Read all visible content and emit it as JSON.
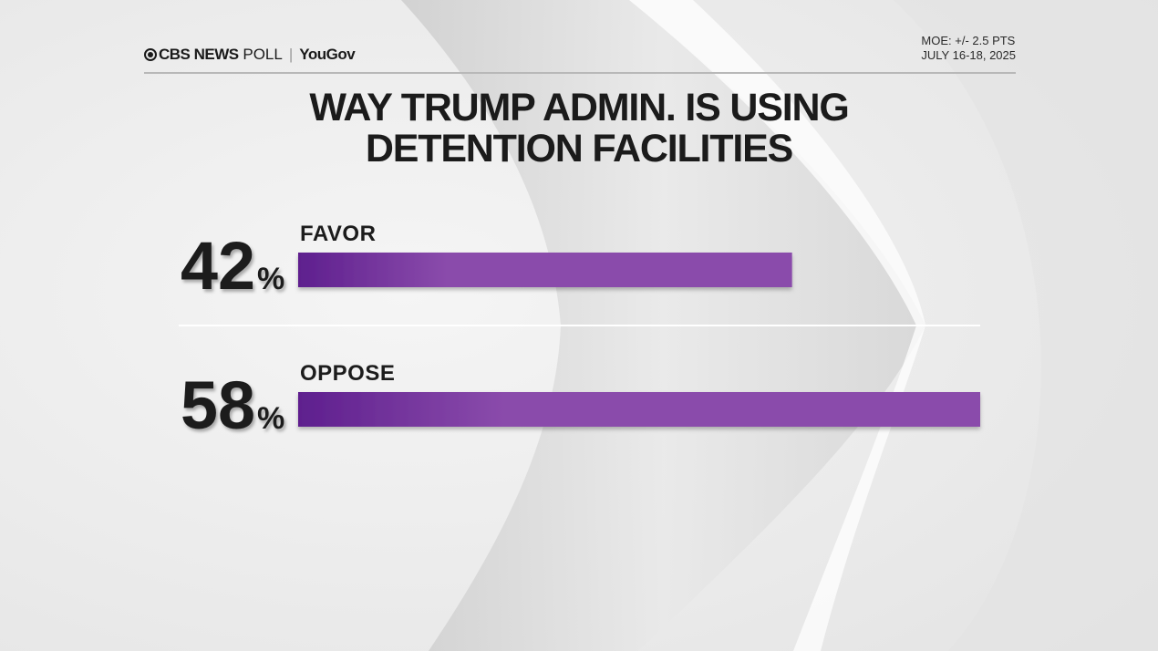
{
  "header": {
    "brand_cbs": "CBS NEWS",
    "brand_poll": "POLL",
    "brand_partner": "YouGov",
    "moe": "MOE: +/- 2.5 PTS",
    "dates": "JULY 16-18, 2025"
  },
  "chart_data": {
    "type": "bar",
    "title_lines": [
      "WAY TRUMP ADMIN. IS USING",
      "DETENTION FACILITIES"
    ],
    "categories": [
      "FAVOR",
      "OPPOSE"
    ],
    "values": [
      42,
      58
    ],
    "value_suffix": "%",
    "xlim": [
      0,
      58
    ],
    "grid": false,
    "bar_color_start": "#5e1f8e",
    "bar_color_end": "#8a4bab"
  }
}
